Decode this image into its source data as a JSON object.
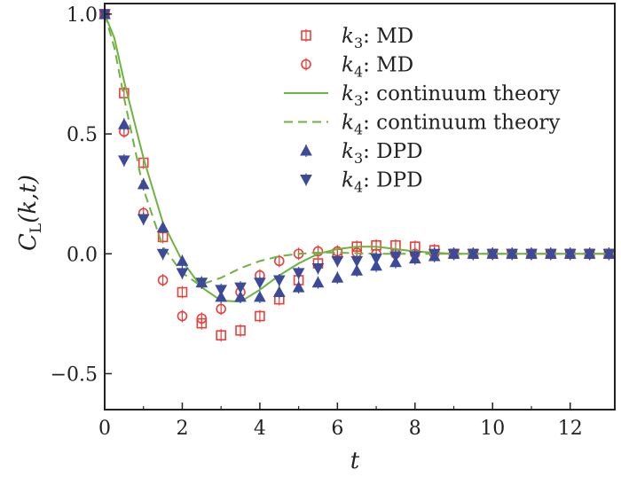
{
  "chart_data": {
    "type": "scatter",
    "xlabel": "t",
    "ylabel": "C_L(k,t)",
    "xlim": [
      0,
      13.15
    ],
    "ylim": [
      -0.65,
      1.044
    ],
    "xticks": [
      0,
      2,
      4,
      6,
      8,
      10,
      12
    ],
    "yticks": [
      {
        "v": -0.5,
        "label": "−0.5"
      },
      {
        "v": 0,
        "label": "0.0"
      },
      {
        "v": 0.5,
        "label": "0.5"
      },
      {
        "v": 1,
        "label": "1.0"
      }
    ],
    "grid": false,
    "legend_position": "top-right",
    "series": [
      {
        "name": "k3: MD",
        "kind": "points",
        "marker": "square",
        "color": "#e8403a",
        "x_step": 0.5,
        "values": [
          1,
          0.67,
          0.38,
          0.07,
          -0.16,
          -0.29,
          -0.34,
          -0.32,
          -0.26,
          -0.19,
          -0.11,
          -0.04,
          0,
          0.03,
          0.035,
          0.035,
          0.03,
          0.015,
          0,
          0,
          0,
          0,
          0,
          0,
          0,
          0,
          0
        ]
      },
      {
        "name": "k4: MD",
        "kind": "points",
        "marker": "circle",
        "color": "#e8403a",
        "x_step": 0.5,
        "values": [
          1,
          0.51,
          0.17,
          -0.11,
          -0.26,
          -0.27,
          -0.23,
          -0.16,
          -0.09,
          -0.03,
          0,
          0.01,
          0.01,
          0.005,
          0,
          0,
          0,
          0,
          0,
          0,
          0,
          0,
          0,
          0,
          0,
          0,
          0
        ]
      },
      {
        "name": "k3: continuum theory",
        "kind": "line",
        "dash": false,
        "color": "#6db33f",
        "x": [
          0,
          0.25,
          0.5,
          1,
          1.5,
          2,
          2.5,
          3,
          3.5,
          4,
          4.5,
          5,
          5.5,
          6,
          6.5,
          7,
          7.5,
          8,
          9,
          13.15
        ],
        "values": [
          1,
          0.9,
          0.72,
          0.4,
          0.13,
          -0.03,
          -0.14,
          -0.195,
          -0.2,
          -0.15,
          -0.09,
          -0.04,
          0,
          0.02,
          0.03,
          0.03,
          0.02,
          0.01,
          0,
          0
        ]
      },
      {
        "name": "k4: continuum theory",
        "kind": "line",
        "dash": true,
        "color": "#6db33f",
        "x": [
          0,
          0.25,
          0.5,
          1,
          1.5,
          2,
          2.45,
          3,
          3.5,
          4,
          4.5,
          5,
          5.5,
          6,
          7,
          13.15
        ],
        "values": [
          1,
          0.86,
          0.65,
          0.27,
          0.03,
          -0.08,
          -0.13,
          -0.1,
          -0.06,
          -0.03,
          -0.01,
          0,
          0.005,
          0.005,
          0,
          0
        ]
      },
      {
        "name": "k3: DPD",
        "kind": "points",
        "marker": "triangle-up",
        "color": "#3c4a9a",
        "x_step": 0.5,
        "values": [
          1,
          0.54,
          0.29,
          0.11,
          -0.03,
          -0.12,
          -0.18,
          -0.18,
          -0.18,
          -0.16,
          -0.14,
          -0.12,
          -0.1,
          -0.07,
          -0.05,
          -0.035,
          -0.02,
          -0.01,
          0,
          0,
          0,
          0,
          0,
          0,
          0,
          0,
          0
        ]
      },
      {
        "name": "k4: DPD",
        "kind": "points",
        "marker": "triangle-down",
        "color": "#3c4a9a",
        "x_step": 0.5,
        "values": [
          1,
          0.39,
          0.145,
          0,
          -0.08,
          -0.12,
          -0.15,
          -0.14,
          -0.12,
          -0.11,
          -0.08,
          -0.06,
          -0.03,
          -0.03,
          -0.02,
          -0.01,
          -0.01,
          0,
          0,
          0,
          0,
          0,
          0,
          0,
          0,
          0,
          0
        ]
      }
    ],
    "legend": [
      {
        "sub": "3",
        "text": ": MD"
      },
      {
        "sub": "4",
        "text": ": MD"
      },
      {
        "sub": "3",
        "text": ": continuum theory"
      },
      {
        "sub": "4",
        "text": ": continuum theory"
      },
      {
        "sub": "3",
        "text": ": DPD"
      },
      {
        "sub": "4",
        "text": ": DPD"
      }
    ]
  }
}
